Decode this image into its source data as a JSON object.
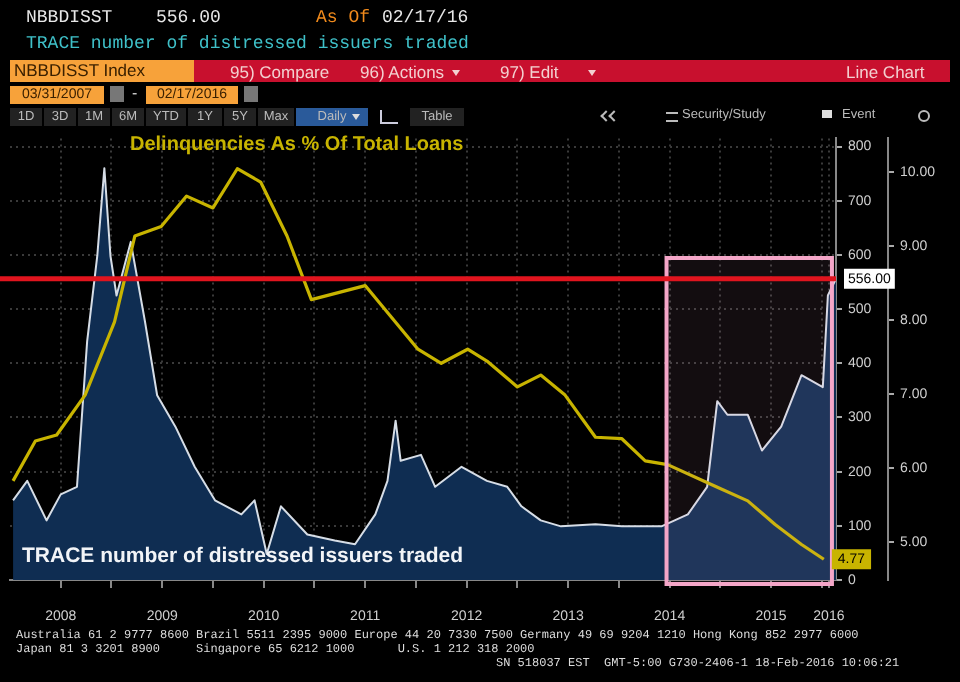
{
  "chart_data": {
    "type": "line",
    "title": "TRACE number of distressed issuers traded",
    "annotations": [
      "NBBDISST",
      "556.00",
      "As Of",
      "02/17/16",
      "NBBDISST Index",
      "95) Compare",
      "96) Actions",
      "97) Edit",
      "Line Chart",
      "03/31/2007",
      "-",
      "02/17/2016",
      "1D",
      "3D",
      "1M",
      "6M",
      "YTD",
      "1Y",
      "5Y",
      "Max",
      "Daily",
      "Table",
      "Security/Study",
      "Event",
      "Australia 61 2 9777 8600 Brazil 5511 2395 9000 Europe 44 20 7330 7500 Germany 49 69 9204 1210 Hong Kong 852 2977 6000",
      "Japan 81 3 3201 8900     Singapore 65 6212 1000      U.S. 1 212 318 2000",
      "SN 518037 EST  GMT-5:00 G730-2406-1 18-Feb-2016 10:06:21"
    ],
    "series": [
      {
        "name": "TRACE number of distressed issuers traded",
        "type": "area",
        "color": "#0f2d52",
        "x": [
          2008.03,
          2008.17,
          2008.36,
          2008.5,
          2008.66,
          2008.76,
          2008.86,
          2008.93,
          2008.99,
          2009.05,
          2009.19,
          2009.33,
          2009.45,
          2009.63,
          2009.82,
          2010.02,
          2010.28,
          2010.41,
          2010.53,
          2010.67,
          2010.93,
          2011.2,
          2011.4,
          2011.6,
          2011.72,
          2011.8,
          2011.85,
          2012.05,
          2012.19,
          2012.45,
          2012.7,
          2012.9,
          2013.04,
          2013.23,
          2013.43,
          2013.77,
          2014.03,
          2014.42,
          2014.68,
          2014.87,
          2014.97,
          2015.07,
          2015.27,
          2015.41,
          2015.6,
          2015.8,
          2016.01,
          2016.06,
          2016.14
        ],
        "values": [
          147,
          183,
          110,
          158,
          172,
          440,
          598,
          760,
          598,
          525,
          624,
          477,
          341,
          283,
          209,
          147,
          121,
          147,
          48,
          136,
          84,
          73,
          66,
          121,
          183,
          294,
          220,
          231,
          172,
          209,
          183,
          172,
          136,
          110,
          99,
          103,
          99,
          99,
          121,
          172,
          330,
          305,
          305,
          239,
          283,
          378,
          356,
          525,
          556
        ]
      },
      {
        "name": "Delinquencies As % Of Total Loans",
        "type": "line",
        "axis": "y2",
        "color": "#c8b400",
        "x": [
          2008.03,
          2008.25,
          2008.46,
          2008.74,
          2009.03,
          2009.23,
          2009.49,
          2009.74,
          2010.0,
          2010.24,
          2010.47,
          2010.73,
          2010.97,
          2011.5,
          2012.02,
          2012.25,
          2012.51,
          2012.7,
          2013.0,
          2013.23,
          2013.47,
          2013.77,
          2014.03,
          2014.26,
          2014.48,
          2014.96,
          2015.27,
          2015.54,
          2015.8,
          2016.02
        ],
        "values": [
          5.83,
          6.37,
          6.45,
          6.99,
          7.98,
          9.14,
          9.27,
          9.68,
          9.52,
          10.05,
          9.87,
          9.14,
          8.28,
          8.47,
          7.61,
          7.42,
          7.61,
          7.45,
          7.1,
          7.26,
          6.99,
          6.42,
          6.4,
          6.1,
          6.05,
          5.75,
          5.56,
          5.24,
          4.97,
          4.77
        ],
        "value_labels": [
          null,
          null,
          null,
          null,
          null,
          null,
          null,
          null,
          null,
          null,
          null,
          null,
          null,
          null,
          null,
          null,
          null,
          null,
          null,
          null,
          null,
          null,
          null,
          null,
          null,
          null,
          null,
          null,
          null,
          "4.77"
        ]
      }
    ],
    "xlim": [
      2008.0,
      2016.14
    ],
    "xticks": [
      {
        "value": 2008.5,
        "label": "2008"
      },
      {
        "value": 2009,
        "label": null
      },
      {
        "value": 2009.5,
        "label": "2009"
      },
      {
        "value": 2010,
        "label": null
      },
      {
        "value": 2010.5,
        "label": "2010"
      },
      {
        "value": 2011,
        "label": null
      },
      {
        "value": 2011.5,
        "label": "2011"
      },
      {
        "value": 2012,
        "label": null
      },
      {
        "value": 2012.5,
        "label": "2012"
      },
      {
        "value": 2013,
        "label": null
      },
      {
        "value": 2013.5,
        "label": "2013"
      },
      {
        "value": 2014,
        "label": null
      },
      {
        "value": 2014.5,
        "label": "2014"
      },
      {
        "value": 2015,
        "label": null
      },
      {
        "value": 2015.5,
        "label": "2015"
      },
      {
        "value": 2016,
        "label": null
      },
      {
        "value": 2016.07,
        "label": "2016"
      }
    ],
    "ylim": [
      0,
      815
    ],
    "yticks": [
      0,
      100,
      200,
      300,
      400,
      500,
      600,
      700,
      800
    ],
    "y2lim": [
      4.49,
      10.46
    ],
    "y2ticks": [
      {
        "value": 5,
        "label": "5.00"
      },
      {
        "value": 6,
        "label": "6.00"
      },
      {
        "value": 7,
        "label": "7.00"
      },
      {
        "value": 8,
        "label": "8.00"
      },
      {
        "value": 9,
        "label": "9.00"
      },
      {
        "value": 10,
        "label": "10.00"
      }
    ],
    "ref_lines": [
      {
        "axis": "y",
        "value": 556,
        "label": "556.00",
        "color": "#e0141e"
      }
    ],
    "bands": [
      {
        "axis": "x",
        "from": 2014.47,
        "to": 2016.1,
        "color": "#f4a6c8"
      }
    ],
    "grid": true
  }
}
